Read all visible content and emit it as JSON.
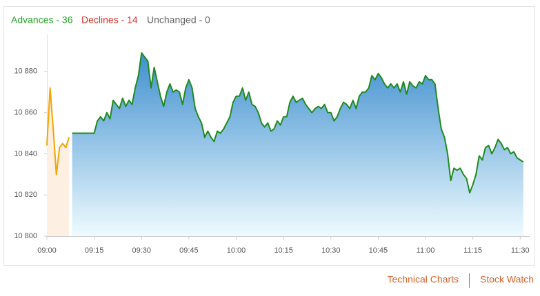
{
  "header": {
    "advances": "Advances - 36",
    "declines": "Declines - 14",
    "unchanged": "Unchanged - 0"
  },
  "footer": {
    "links": [
      "Technical Charts",
      "Stock Watch"
    ]
  },
  "chart_data": {
    "type": "line",
    "xlim": [
      "09:00",
      "11:33"
    ],
    "xticks": [
      "09:00",
      "09:15",
      "09:30",
      "09:45",
      "10:00",
      "10:15",
      "10:30",
      "10:45",
      "11:00",
      "11:15",
      "11:30"
    ],
    "ylim": [
      10800,
      10898
    ],
    "yticks": [
      {
        "value": 10800,
        "label": "10 800"
      },
      {
        "value": 10820,
        "label": "10 820"
      },
      {
        "value": 10840,
        "label": "10 840"
      },
      {
        "value": 10860,
        "label": "10 860"
      },
      {
        "value": 10880,
        "label": "10 880"
      }
    ],
    "grid": false,
    "series": [
      {
        "color": "#f5a300",
        "fill": "#fdf0e2",
        "x": [
          "09:00",
          "09:01",
          "09:02",
          "09:03",
          "09:04",
          "09:05",
          "09:06",
          "09:07"
        ],
        "values": [
          10844,
          10872,
          10852,
          10830,
          10843,
          10845,
          10843,
          10848
        ]
      },
      {
        "color": "#1e8a1e",
        "fill": "gradient",
        "x": [
          "09:08",
          "09:15",
          "09:16",
          "09:17",
          "09:18",
          "09:19",
          "09:20",
          "09:21",
          "09:22",
          "09:23",
          "09:24",
          "09:25",
          "09:26",
          "09:27",
          "09:28",
          "09:29",
          "09:30",
          "09:31",
          "09:32",
          "09:33",
          "09:34",
          "09:35",
          "09:36",
          "09:37",
          "09:38",
          "09:39",
          "09:40",
          "09:41",
          "09:42",
          "09:43",
          "09:44",
          "09:45",
          "09:46",
          "09:47",
          "09:48",
          "09:49",
          "09:50",
          "09:51",
          "09:52",
          "09:53",
          "09:54",
          "09:55",
          "09:56",
          "09:57",
          "09:58",
          "09:59",
          "10:00",
          "10:01",
          "10:02",
          "10:03",
          "10:04",
          "10:05",
          "10:06",
          "10:07",
          "10:08",
          "10:09",
          "10:10",
          "10:11",
          "10:12",
          "10:13",
          "10:14",
          "10:15",
          "10:16",
          "10:17",
          "10:18",
          "10:19",
          "10:20",
          "10:21",
          "10:22",
          "10:23",
          "10:24",
          "10:25",
          "10:26",
          "10:27",
          "10:28",
          "10:29",
          "10:30",
          "10:31",
          "10:32",
          "10:33",
          "10:34",
          "10:35",
          "10:36",
          "10:37",
          "10:38",
          "10:39",
          "10:40",
          "10:41",
          "10:42",
          "10:43",
          "10:44",
          "10:45",
          "10:46",
          "10:47",
          "10:48",
          "10:49",
          "10:50",
          "10:51",
          "10:52",
          "10:53",
          "10:54",
          "10:55",
          "10:56",
          "10:57",
          "10:58",
          "10:59",
          "11:00",
          "11:01",
          "11:02",
          "11:03",
          "11:04",
          "11:05",
          "11:06",
          "11:07",
          "11:08",
          "11:09",
          "11:10",
          "11:11",
          "11:12",
          "11:13",
          "11:14",
          "11:15",
          "11:16",
          "11:17",
          "11:18",
          "11:19",
          "11:20",
          "11:21",
          "11:22",
          "11:23",
          "11:24",
          "11:25",
          "11:26",
          "11:27",
          "11:28",
          "11:29",
          "11:30",
          "11:31"
        ],
        "values": [
          10850,
          10850,
          10856,
          10858,
          10856,
          10860,
          10857,
          10866,
          10864,
          10862,
          10867,
          10863,
          10866,
          10864,
          10872,
          10878,
          10889,
          10887,
          10885,
          10872,
          10882,
          10875,
          10868,
          10863,
          10870,
          10874,
          10870,
          10871,
          10870,
          10864,
          10872,
          10876,
          10872,
          10862,
          10858,
          10855,
          10848,
          10851,
          10848,
          10846,
          10851,
          10850,
          10852,
          10855,
          10858,
          10865,
          10868,
          10868,
          10872,
          10866,
          10870,
          10864,
          10863,
          10860,
          10855,
          10853,
          10855,
          10851,
          10852,
          10856,
          10854,
          10858,
          10858,
          10865,
          10868,
          10865,
          10866,
          10867,
          10864,
          10862,
          10860,
          10862,
          10863,
          10862,
          10864,
          10860,
          10860,
          10856,
          10858,
          10862,
          10865,
          10864,
          10862,
          10866,
          10862,
          10868,
          10870,
          10870,
          10872,
          10878,
          10876,
          10879,
          10877,
          10874,
          10872,
          10874,
          10872,
          10874,
          10870,
          10875,
          10869,
          10875,
          10873,
          10872,
          10875,
          10874,
          10878,
          10876,
          10876,
          10874,
          10862,
          10852,
          10848,
          10840,
          10827,
          10833,
          10832,
          10833,
          10830,
          10828,
          10821,
          10825,
          10830,
          10839,
          10837,
          10843,
          10844,
          10840,
          10843,
          10847,
          10845,
          10842,
          10843,
          10840,
          10841,
          10838,
          10837,
          10836
        ]
      }
    ]
  }
}
